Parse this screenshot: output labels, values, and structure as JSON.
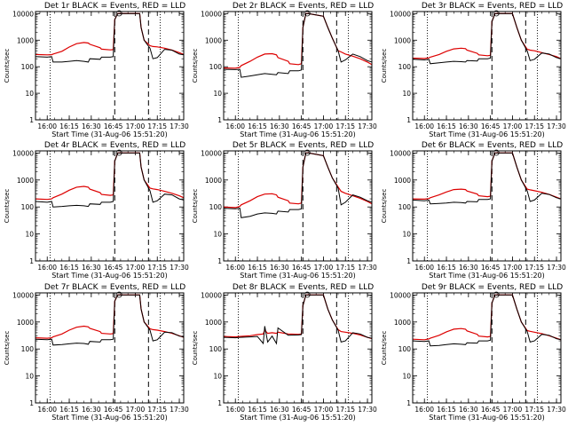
{
  "figure": {
    "ylabel": "Counts/sec",
    "xlabel": "Start Time (31-Aug-06 15:51:20)"
  },
  "chart_data": {
    "type": "line",
    "scale_y": "log",
    "ylim": [
      1,
      12000
    ],
    "yticks": [
      1,
      10,
      100,
      1000,
      10000
    ],
    "ytick_labels": [
      "1",
      "10",
      "100",
      "1000",
      "10000"
    ],
    "xlim": [
      "15:52",
      "17:33"
    ],
    "xticks": [
      "16:00",
      "16:15",
      "16:30",
      "16:45",
      "17:00",
      "17:15",
      "17:30"
    ],
    "markers": {
      "dotted": [
        "16:02",
        "17:17"
      ],
      "dashed": [
        "16:46",
        "17:09"
      ]
    },
    "series_colors": {
      "Events": "#000000",
      "LLD": "#dd0000"
    },
    "panels": [
      {
        "title": "Det 1r BLACK = Events, RED = LLD",
        "x": [
          "15:52",
          "16:00",
          "16:03",
          "16:04",
          "16:10",
          "16:15",
          "16:20",
          "16:25",
          "16:28",
          "16:29",
          "16:36",
          "16:37",
          "16:43",
          "16:45",
          "16:46",
          "16:48",
          "16:50",
          "17:03",
          "17:04",
          "17:06",
          "17:10",
          "17:12",
          "17:15",
          "17:20",
          "17:25",
          "17:30",
          "17:33"
        ],
        "series": [
          {
            "name": "Events",
            "values": [
              240,
              230,
              240,
              150,
              150,
              160,
              170,
              160,
              150,
              200,
              190,
              230,
              230,
              240,
              6000,
              10000,
              10000,
              10000,
              3000,
              1000,
              500,
              200,
              220,
              450,
              420,
              300,
              280
            ]
          },
          {
            "name": "LLD",
            "values": [
              290,
              280,
              285,
              300,
              380,
              550,
              740,
              820,
              780,
              700,
              520,
              460,
              430,
              440,
              6000,
              10000,
              10000,
              10000,
              3000,
              1000,
              620,
              580,
              560,
              500,
              420,
              340,
              290
            ]
          }
        ]
      },
      {
        "title": "Det 2r BLACK = Events, RED = LLD",
        "x": [
          "15:52",
          "16:00",
          "16:03",
          "16:04",
          "16:10",
          "16:15",
          "16:20",
          "16:25",
          "16:28",
          "16:29",
          "16:36",
          "16:37",
          "16:43",
          "16:45",
          "16:46",
          "16:48",
          "16:50",
          "17:00",
          "17:03",
          "17:06",
          "17:10",
          "17:12",
          "17:15",
          "17:20",
          "17:25",
          "17:30",
          "17:33"
        ],
        "series": [
          {
            "name": "Events",
            "values": [
              80,
              78,
              80,
              40,
              45,
              50,
              55,
              52,
              50,
              60,
              55,
              70,
              70,
              75,
              3000,
              10000,
              10000,
              8000,
              3000,
              1200,
              400,
              150,
              180,
              300,
              240,
              170,
              150
            ]
          },
          {
            "name": "LLD",
            "values": [
              90,
              88,
              95,
              110,
              160,
              230,
              300,
              310,
              280,
              220,
              160,
              130,
              120,
              130,
              3000,
              10000,
              10000,
              8000,
              3000,
              1200,
              400,
              360,
              300,
              250,
              200,
              150,
              120
            ]
          }
        ]
      },
      {
        "title": "Det 3r BLACK = Events, RED = LLD",
        "x": [
          "15:52",
          "16:00",
          "16:03",
          "16:04",
          "16:10",
          "16:15",
          "16:20",
          "16:25",
          "16:28",
          "16:29",
          "16:36",
          "16:37",
          "16:43",
          "16:45",
          "16:46",
          "16:48",
          "16:50",
          "17:00",
          "17:03",
          "17:06",
          "17:10",
          "17:12",
          "17:15",
          "17:20",
          "17:25",
          "17:30",
          "17:33"
        ],
        "series": [
          {
            "name": "Events",
            "values": [
              190,
              180,
              190,
              130,
              140,
              150,
              160,
              155,
              150,
              170,
              165,
              200,
              200,
              210,
              5000,
              10000,
              10000,
              10000,
              3000,
              1000,
              400,
              170,
              190,
              330,
              300,
              220,
              200
            ]
          },
          {
            "name": "LLD",
            "values": [
              210,
              205,
              215,
              230,
              290,
              380,
              470,
              500,
              480,
              420,
              320,
              280,
              260,
              270,
              5000,
              10000,
              10000,
              10000,
              3000,
              1000,
              460,
              420,
              400,
              340,
              290,
              240,
              200
            ]
          }
        ]
      },
      {
        "title": "Det 4r BLACK = Events, RED = LLD",
        "x": [
          "15:52",
          "16:00",
          "16:03",
          "16:04",
          "16:10",
          "16:15",
          "16:20",
          "16:25",
          "16:28",
          "16:29",
          "16:36",
          "16:37",
          "16:43",
          "16:45",
          "16:46",
          "16:48",
          "16:50",
          "17:03",
          "17:04",
          "17:06",
          "17:10",
          "17:12",
          "17:15",
          "17:20",
          "17:25",
          "17:30",
          "17:33"
        ],
        "series": [
          {
            "name": "Events",
            "values": [
              160,
              150,
              160,
              100,
              105,
              110,
              115,
              110,
              105,
              130,
              125,
              150,
              150,
              160,
              5000,
              10000,
              10000,
              10000,
              3000,
              1000,
              400,
              150,
              170,
              300,
              280,
              200,
              180
            ]
          },
          {
            "name": "LLD",
            "values": [
              200,
              190,
              200,
              220,
              300,
              420,
              540,
              580,
              540,
              460,
              340,
              290,
              270,
              280,
              5000,
              10000,
              10000,
              10000,
              3000,
              1000,
              500,
              470,
              440,
              380,
              320,
              260,
              220
            ]
          }
        ]
      },
      {
        "title": "Det 5r BLACK = Events, RED = LLD",
        "x": [
          "15:52",
          "16:00",
          "16:03",
          "16:04",
          "16:10",
          "16:15",
          "16:20",
          "16:25",
          "16:28",
          "16:29",
          "16:36",
          "16:37",
          "16:43",
          "16:45",
          "16:46",
          "16:48",
          "16:50",
          "17:00",
          "17:03",
          "17:06",
          "17:10",
          "17:12",
          "17:15",
          "17:20",
          "17:25",
          "17:30",
          "17:33"
        ],
        "series": [
          {
            "name": "Events",
            "values": [
              90,
              85,
              90,
              40,
              45,
              55,
              60,
              58,
              55,
              70,
              65,
              80,
              80,
              85,
              3000,
              10000,
              10000,
              8000,
              3000,
              1200,
              500,
              120,
              150,
              280,
              230,
              170,
              150
            ]
          },
          {
            "name": "LLD",
            "values": [
              100,
              95,
              105,
              120,
              170,
              240,
              300,
              310,
              280,
              230,
              170,
              140,
              130,
              140,
              3000,
              10000,
              10000,
              8000,
              3000,
              1200,
              550,
              380,
              320,
              260,
              210,
              160,
              130
            ]
          }
        ]
      },
      {
        "title": "Det 6r BLACK = Events, RED = LLD",
        "x": [
          "15:52",
          "16:00",
          "16:03",
          "16:04",
          "16:10",
          "16:15",
          "16:20",
          "16:25",
          "16:28",
          "16:29",
          "16:36",
          "16:37",
          "16:43",
          "16:45",
          "16:46",
          "16:48",
          "16:50",
          "17:00",
          "17:03",
          "17:06",
          "17:10",
          "17:12",
          "17:15",
          "17:20",
          "17:25",
          "17:30",
          "17:33"
        ],
        "series": [
          {
            "name": "Events",
            "values": [
              180,
              170,
              180,
              130,
              135,
              140,
              150,
              145,
              140,
              160,
              155,
              190,
              190,
              200,
              5000,
              10000,
              10000,
              10000,
              3000,
              1000,
              400,
              160,
              180,
              320,
              290,
              220,
              200
            ]
          },
          {
            "name": "LLD",
            "values": [
              200,
              195,
              205,
              220,
              280,
              360,
              440,
              460,
              440,
              390,
              300,
              260,
              240,
              250,
              5000,
              10000,
              10000,
              10000,
              3000,
              1000,
              460,
              430,
              400,
              350,
              290,
              230,
              200
            ]
          }
        ]
      },
      {
        "title": "Det 7r BLACK = Events, RED = LLD",
        "x": [
          "15:52",
          "16:00",
          "16:03",
          "16:04",
          "16:10",
          "16:15",
          "16:20",
          "16:25",
          "16:28",
          "16:29",
          "16:36",
          "16:37",
          "16:43",
          "16:45",
          "16:46",
          "16:48",
          "16:50",
          "17:03",
          "17:04",
          "17:06",
          "17:10",
          "17:12",
          "17:15",
          "17:20",
          "17:25",
          "17:30",
          "17:33"
        ],
        "series": [
          {
            "name": "Events",
            "values": [
              230,
              220,
              230,
              140,
              145,
              155,
              165,
              160,
              150,
              190,
              180,
              220,
              220,
              230,
              6000,
              10000,
              10000,
              10000,
              3000,
              1000,
              500,
              200,
              220,
              420,
              400,
              300,
              280
            ]
          },
          {
            "name": "LLD",
            "values": [
              260,
              250,
              260,
              280,
              360,
              500,
              640,
              700,
              660,
              580,
              440,
              380,
              360,
              370,
              6000,
              10000,
              10000,
              10000,
              3000,
              1000,
              560,
              520,
              500,
              440,
              380,
              310,
              270
            ]
          }
        ]
      },
      {
        "title": "Det 8r BLACK = Events, RED = LLD",
        "x": [
          "15:52",
          "16:00",
          "16:03",
          "16:10",
          "16:15",
          "16:19",
          "16:20",
          "16:22",
          "16:25",
          "16:28",
          "16:29",
          "16:36",
          "16:43",
          "16:45",
          "16:46",
          "16:48",
          "16:50",
          "17:00",
          "17:03",
          "17:06",
          "17:10",
          "17:12",
          "17:15",
          "17:20",
          "17:25",
          "17:30",
          "17:33"
        ],
        "series": [
          {
            "name": "Events",
            "values": [
              270,
              260,
              270,
              280,
              290,
              160,
              700,
              180,
              300,
              160,
              600,
              320,
              330,
              340,
              4000,
              10000,
              10000,
              10000,
              3000,
              1200,
              500,
              180,
              200,
              400,
              360,
              270,
              250
            ]
          },
          {
            "name": "LLD",
            "values": [
              290,
              280,
              290,
              310,
              340,
              360,
              500,
              380,
              400,
              380,
              420,
              360,
              350,
              360,
              4000,
              10000,
              10000,
              10000,
              3000,
              1200,
              520,
              440,
              420,
              380,
              330,
              270,
              240
            ]
          }
        ]
      },
      {
        "title": "Det 9r BLACK = Events, RED = LLD",
        "x": [
          "15:52",
          "16:00",
          "16:03",
          "16:04",
          "16:10",
          "16:15",
          "16:20",
          "16:25",
          "16:28",
          "16:29",
          "16:36",
          "16:37",
          "16:43",
          "16:45",
          "16:46",
          "16:48",
          "16:50",
          "17:00",
          "17:03",
          "17:06",
          "17:10",
          "17:12",
          "17:15",
          "17:20",
          "17:25",
          "17:30",
          "17:33"
        ],
        "series": [
          {
            "name": "Events",
            "values": [
              200,
              190,
              200,
              130,
              135,
              145,
              155,
              150,
              145,
              170,
              165,
              200,
              200,
              210,
              5000,
              10000,
              10000,
              10000,
              3000,
              1000,
              450,
              180,
              200,
              350,
              320,
              240,
              220
            ]
          },
          {
            "name": "LLD",
            "values": [
              230,
              220,
              235,
              250,
              320,
              430,
              540,
              570,
              540,
              470,
              350,
              300,
              280,
              290,
              5000,
              10000,
              10000,
              10000,
              3000,
              1000,
              480,
              450,
              420,
              370,
              310,
              250,
              220
            ]
          }
        ]
      }
    ]
  }
}
